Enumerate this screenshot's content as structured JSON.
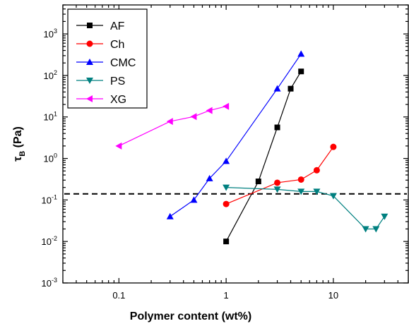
{
  "chart_data": {
    "type": "scatter",
    "xlabel": "Polymer content (wt%)",
    "ylabel_main": "τ",
    "ylabel_sub": "B",
    "ylabel_unit": " (Pa)",
    "xscale": "log",
    "yscale": "log",
    "xlim": [
      0.03,
      50
    ],
    "ylim": [
      0.001,
      5000
    ],
    "x_ticks": [
      {
        "value": 0.1,
        "label": "0.1"
      },
      {
        "value": 1,
        "label": "1"
      },
      {
        "value": 10,
        "label": "10"
      }
    ],
    "y_ticks": [
      {
        "value": 0.001,
        "base": "10",
        "exp": "-3"
      },
      {
        "value": 0.01,
        "base": "10",
        "exp": "-2"
      },
      {
        "value": 0.1,
        "base": "10",
        "exp": "-1"
      },
      {
        "value": 1,
        "base": "10",
        "exp": "0"
      },
      {
        "value": 10,
        "base": "10",
        "exp": "1"
      },
      {
        "value": 100,
        "base": "10",
        "exp": "2"
      },
      {
        "value": 1000,
        "base": "10",
        "exp": "3"
      }
    ],
    "reference_line": {
      "y": 0.14,
      "style": "dashed",
      "color": "#000000"
    },
    "legend_position": "top-left",
    "series": [
      {
        "name": "AF",
        "color": "#000000",
        "marker": "square",
        "x": [
          1,
          2,
          3,
          4,
          5
        ],
        "y": [
          0.01,
          0.28,
          5.6,
          48,
          125
        ]
      },
      {
        "name": "Ch",
        "color": "#ff0000",
        "marker": "circle",
        "x": [
          1,
          3,
          5,
          7,
          10
        ],
        "y": [
          0.08,
          0.26,
          0.31,
          0.52,
          1.9
        ]
      },
      {
        "name": "CMC",
        "color": "#0000ff",
        "marker": "triangle-up",
        "x": [
          0.3,
          0.5,
          0.7,
          1,
          3,
          5
        ],
        "y": [
          0.04,
          0.1,
          0.33,
          0.86,
          48,
          330
        ]
      },
      {
        "name": "PS",
        "color": "#008080",
        "marker": "triangle-down",
        "x": [
          1,
          3,
          5,
          7,
          10,
          20,
          25,
          30
        ],
        "y": [
          0.2,
          0.18,
          0.16,
          0.16,
          0.125,
          0.02,
          0.02,
          0.04
        ]
      },
      {
        "name": "XG",
        "color": "#ff00ff",
        "marker": "triangle-left",
        "x": [
          0.1,
          0.3,
          0.5,
          0.7,
          1
        ],
        "y": [
          2.0,
          7.8,
          10.2,
          14.3,
          18
        ]
      }
    ]
  }
}
